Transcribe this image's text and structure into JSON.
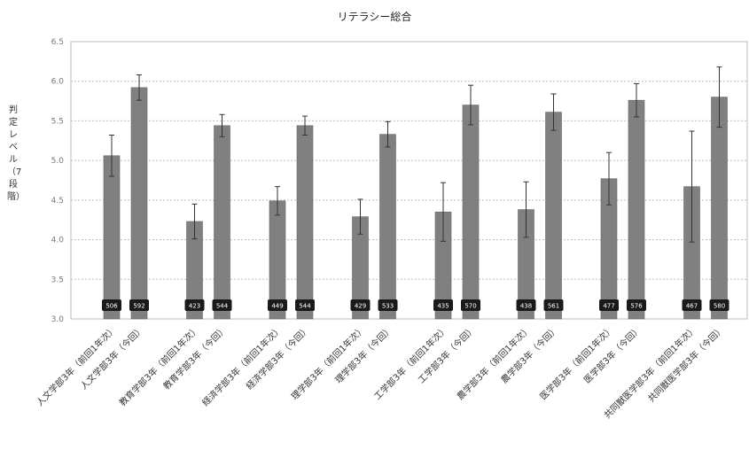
{
  "chart_data": {
    "type": "bar",
    "title": "リテラシー総合",
    "ylabel": "判定レベル（7段階）",
    "xlabel": "",
    "ylim": [
      30,
      65
    ],
    "yticks": [
      "3.0",
      "3.5",
      "4.0",
      "4.5",
      "5.0",
      "5.5",
      "6.0",
      "6.5"
    ],
    "ytick_values": [
      30,
      35,
      40,
      45,
      50,
      55,
      60,
      65
    ],
    "grid": true,
    "legend": "none",
    "bar_color": "#808080",
    "categories": [
      "人文学部3年（前回1年次）",
      "人文学部3年（今回）",
      "教育学部3年（前回1年次）",
      "教育学部3年（今回）",
      "経済学部3年（前回1年次）",
      "経済学部3年（今回）",
      "理学部3年（前回1年次）",
      "理学部3年（今回）",
      "工学部3年（前回1年次）",
      "工学部3年（今回）",
      "農学部3年（前回1年次）",
      "農学部3年（今回）",
      "医学部3年（前回1年次）",
      "医学部3年（今回）",
      "共同獣医学部3年（前回1年次）",
      "共同獣医学部3年（今回）"
    ],
    "values": [
      50.6,
      59.2,
      42.3,
      54.4,
      44.9,
      54.4,
      42.9,
      53.3,
      43.5,
      57.0,
      43.8,
      56.1,
      47.7,
      57.6,
      46.7,
      58.0
    ],
    "value_labels": [
      "506",
      "592",
      "423",
      "544",
      "449",
      "544",
      "429",
      "533",
      "435",
      "570",
      "438",
      "561",
      "477",
      "576",
      "467",
      "580"
    ],
    "error": [
      2.6,
      1.6,
      2.2,
      1.4,
      1.8,
      1.2,
      2.2,
      1.6,
      3.7,
      2.5,
      3.5,
      2.3,
      3.3,
      2.1,
      7.0,
      3.8
    ]
  }
}
